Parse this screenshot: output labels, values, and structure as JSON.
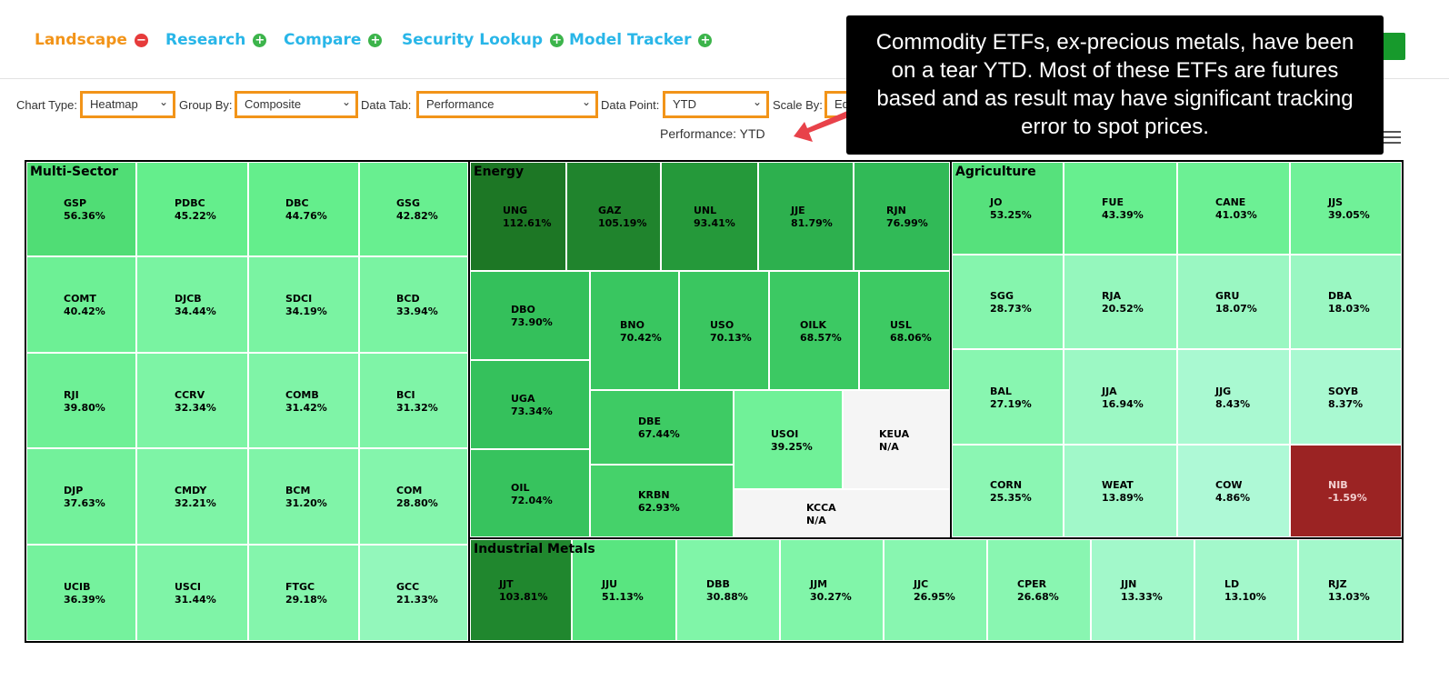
{
  "nav": [
    {
      "label": "Landscape",
      "icon": "minus-circle-icon",
      "glyph": "−",
      "color": "#f29419",
      "icon_color": "#e63b3b"
    },
    {
      "label": "Research",
      "icon": "plus-circle-icon",
      "glyph": "+",
      "color": "#29b6e8",
      "icon_color": "#3cb44b"
    },
    {
      "label": "Compare",
      "icon": "plus-circle-icon",
      "glyph": "+",
      "color": "#29b6e8",
      "icon_color": "#3cb44b"
    },
    {
      "label": "Security Lookup",
      "icon": "plus-circle-icon",
      "glyph": "+",
      "color": "#29b6e8",
      "icon_color": "#3cb44b"
    },
    {
      "label": "Model Tracker",
      "icon": "plus-circle-icon",
      "glyph": "+",
      "color": "#29b6e8",
      "icon_color": "#3cb44b"
    }
  ],
  "controls": {
    "chart_type": {
      "label": "Chart Type:",
      "value": "Heatmap"
    },
    "group_by": {
      "label": "Group By:",
      "value": "Composite"
    },
    "data_tab": {
      "label": "Data Tab:",
      "value": "Performance"
    },
    "data_point": {
      "label": "Data Point:",
      "value": "YTD"
    },
    "scale_by": {
      "label": "Scale By:",
      "value": "Eq"
    }
  },
  "performance_label": "Performance: YTD",
  "callout": "Commodity ETFs, ex-precious metals, have been on a tear YTD. Most of these ETFs are futures based and as result may have significant tracking error to spot prices.",
  "colors": {
    "accent_orange": "#f29419",
    "nav_blue": "#29b6e8",
    "button_green": "#179a2c",
    "negative_red": "#9b2323",
    "na_gray": "#f5f5f5"
  },
  "sectors": [
    {
      "name": "Multi-Sector",
      "cells": [
        {
          "t": "GSP",
          "v": "56.36%"
        },
        {
          "t": "PDBC",
          "v": "45.22%"
        },
        {
          "t": "DBC",
          "v": "44.76%"
        },
        {
          "t": "GSG",
          "v": "42.82%"
        },
        {
          "t": "COMT",
          "v": "40.42%"
        },
        {
          "t": "DJCB",
          "v": "34.44%"
        },
        {
          "t": "SDCI",
          "v": "34.19%"
        },
        {
          "t": "BCD",
          "v": "33.94%"
        },
        {
          "t": "RJI",
          "v": "39.80%"
        },
        {
          "t": "CCRV",
          "v": "32.34%"
        },
        {
          "t": "COMB",
          "v": "31.42%"
        },
        {
          "t": "BCI",
          "v": "31.32%"
        },
        {
          "t": "DJP",
          "v": "37.63%"
        },
        {
          "t": "CMDY",
          "v": "32.21%"
        },
        {
          "t": "BCM",
          "v": "31.20%"
        },
        {
          "t": "COM",
          "v": "28.80%"
        },
        {
          "t": "UCIB",
          "v": "36.39%"
        },
        {
          "t": "USCI",
          "v": "31.44%"
        },
        {
          "t": "FTGC",
          "v": "29.18%"
        },
        {
          "t": "GCC",
          "v": "21.33%"
        }
      ]
    },
    {
      "name": "Energy",
      "cells": [
        {
          "t": "UNG",
          "v": "112.61%"
        },
        {
          "t": "GAZ",
          "v": "105.19%"
        },
        {
          "t": "UNL",
          "v": "93.41%"
        },
        {
          "t": "JJE",
          "v": "81.79%"
        },
        {
          "t": "RJN",
          "v": "76.99%"
        },
        {
          "t": "DBO",
          "v": "73.90%"
        },
        {
          "t": "BNO",
          "v": "70.42%"
        },
        {
          "t": "USO",
          "v": "70.13%"
        },
        {
          "t": "OILK",
          "v": "68.57%"
        },
        {
          "t": "USL",
          "v": "68.06%"
        },
        {
          "t": "UGA",
          "v": "73.34%"
        },
        {
          "t": "DBE",
          "v": "67.44%"
        },
        {
          "t": "USOI",
          "v": "39.25%"
        },
        {
          "t": "KEUA",
          "v": "N/A"
        },
        {
          "t": "OIL",
          "v": "72.04%"
        },
        {
          "t": "KRBN",
          "v": "62.93%"
        },
        {
          "t": "KCCA",
          "v": "N/A"
        }
      ]
    },
    {
      "name": "Agriculture",
      "cells": [
        {
          "t": "JO",
          "v": "53.25%"
        },
        {
          "t": "FUE",
          "v": "43.39%"
        },
        {
          "t": "CANE",
          "v": "41.03%"
        },
        {
          "t": "JJS",
          "v": "39.05%"
        },
        {
          "t": "SGG",
          "v": "28.73%"
        },
        {
          "t": "RJA",
          "v": "20.52%"
        },
        {
          "t": "GRU",
          "v": "18.07%"
        },
        {
          "t": "DBA",
          "v": "18.03%"
        },
        {
          "t": "BAL",
          "v": "27.19%"
        },
        {
          "t": "JJA",
          "v": "16.94%"
        },
        {
          "t": "JJG",
          "v": "8.43%"
        },
        {
          "t": "SOYB",
          "v": "8.37%"
        },
        {
          "t": "CORN",
          "v": "25.35%"
        },
        {
          "t": "WEAT",
          "v": "13.89%"
        },
        {
          "t": "COW",
          "v": "4.86%"
        },
        {
          "t": "NIB",
          "v": "-1.59%"
        }
      ]
    },
    {
      "name": "Industrial Metals",
      "cells": [
        {
          "t": "JJT",
          "v": "103.81%"
        },
        {
          "t": "JJU",
          "v": "51.13%"
        },
        {
          "t": "DBB",
          "v": "30.88%"
        },
        {
          "t": "JJM",
          "v": "30.27%"
        },
        {
          "t": "JJC",
          "v": "26.95%"
        },
        {
          "t": "CPER",
          "v": "26.68%"
        },
        {
          "t": "JJN",
          "v": "13.33%"
        },
        {
          "t": "LD",
          "v": "13.10%"
        },
        {
          "t": "RJZ",
          "v": "13.03%"
        }
      ]
    }
  ]
}
